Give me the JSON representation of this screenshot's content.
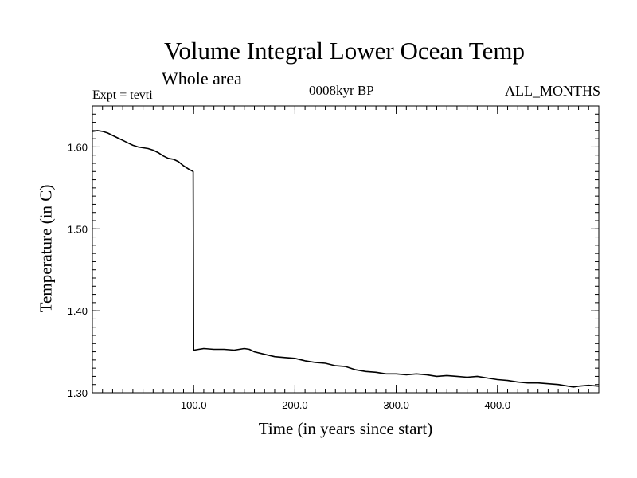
{
  "chart_data": {
    "type": "line",
    "title": "Volume Integral Lower Ocean Temp",
    "subtitle": "Whole area",
    "annotations": {
      "experiment": "Expt = tevti",
      "center": "0008kyr BP",
      "right": "ALL_MONTHS"
    },
    "xlabel": "Time (in years since start)",
    "ylabel": "Temperature (in C)",
    "xlim": [
      0,
      500
    ],
    "ylim": [
      1.3,
      1.65
    ],
    "xticks": [
      {
        "value": 100,
        "label": "100.0"
      },
      {
        "value": 200,
        "label": "200.0"
      },
      {
        "value": 300,
        "label": "300.0"
      },
      {
        "value": 400,
        "label": "400.0"
      }
    ],
    "yticks": [
      {
        "value": 1.3,
        "label": "1.30"
      },
      {
        "value": 1.4,
        "label": "1.40"
      },
      {
        "value": 1.5,
        "label": "1.50"
      },
      {
        "value": 1.6,
        "label": "1.60"
      }
    ],
    "grid": false,
    "line_color": "#000000",
    "series": [
      {
        "x": [
          0,
          5,
          10,
          15,
          20,
          25,
          30,
          35,
          40,
          45,
          50,
          55,
          60,
          65,
          70,
          75,
          80,
          85,
          90,
          95,
          99.5,
          100,
          100.5,
          105,
          110,
          120,
          130,
          140,
          150,
          155,
          160,
          170,
          180,
          190,
          200,
          210,
          220,
          230,
          240,
          250,
          260,
          270,
          280,
          290,
          300,
          310,
          320,
          330,
          340,
          350,
          360,
          370,
          380,
          390,
          400,
          410,
          420,
          430,
          440,
          450,
          460,
          470,
          475,
          480,
          490,
          500
        ],
        "y": [
          1.619,
          1.62,
          1.619,
          1.617,
          1.614,
          1.611,
          1.608,
          1.605,
          1.602,
          1.6,
          1.599,
          1.598,
          1.596,
          1.593,
          1.589,
          1.586,
          1.585,
          1.582,
          1.577,
          1.573,
          1.57,
          1.352,
          1.352,
          1.353,
          1.354,
          1.353,
          1.353,
          1.352,
          1.354,
          1.353,
          1.35,
          1.347,
          1.344,
          1.343,
          1.342,
          1.339,
          1.337,
          1.336,
          1.333,
          1.332,
          1.328,
          1.326,
          1.325,
          1.323,
          1.323,
          1.322,
          1.323,
          1.322,
          1.32,
          1.321,
          1.32,
          1.319,
          1.32,
          1.318,
          1.316,
          1.315,
          1.313,
          1.312,
          1.312,
          1.311,
          1.31,
          1.308,
          1.307,
          1.308,
          1.309,
          1.308
        ]
      }
    ]
  }
}
